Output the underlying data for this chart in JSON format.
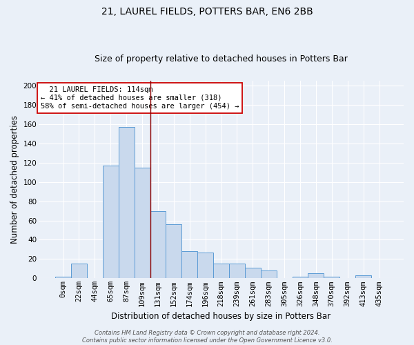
{
  "title": "21, LAUREL FIELDS, POTTERS BAR, EN6 2BB",
  "subtitle": "Size of property relative to detached houses in Potters Bar",
  "xlabel": "Distribution of detached houses by size in Potters Bar",
  "ylabel": "Number of detached properties",
  "bin_labels": [
    "0sqm",
    "22sqm",
    "44sqm",
    "65sqm",
    "87sqm",
    "109sqm",
    "131sqm",
    "152sqm",
    "174sqm",
    "196sqm",
    "218sqm",
    "239sqm",
    "261sqm",
    "283sqm",
    "305sqm",
    "326sqm",
    "348sqm",
    "370sqm",
    "392sqm",
    "413sqm",
    "435sqm"
  ],
  "bar_heights": [
    2,
    15,
    0,
    117,
    157,
    115,
    70,
    56,
    28,
    27,
    15,
    15,
    11,
    8,
    0,
    2,
    5,
    2,
    0,
    3,
    0
  ],
  "bar_color": "#c9d9ed",
  "bar_edge_color": "#5b9bd5",
  "vline_x": 5.5,
  "vline_color": "#8b0000",
  "annotation_text": "  21 LAUREL FIELDS: 114sqm\n← 41% of detached houses are smaller (318)\n58% of semi-detached houses are larger (454) →",
  "annotation_box_color": "white",
  "annotation_box_edge_color": "#cc0000",
  "footer_text": "Contains HM Land Registry data © Crown copyright and database right 2024.\nContains public sector information licensed under the Open Government Licence v3.0.",
  "ylim": [
    0,
    205
  ],
  "yticks": [
    0,
    20,
    40,
    60,
    80,
    100,
    120,
    140,
    160,
    180,
    200
  ],
  "background_color": "#eaf0f8",
  "plot_background_color": "#eaf0f8",
  "title_fontsize": 10,
  "subtitle_fontsize": 9,
  "tick_fontsize": 7.5,
  "ylabel_fontsize": 8.5,
  "xlabel_fontsize": 8.5,
  "annotation_fontsize": 7.5
}
